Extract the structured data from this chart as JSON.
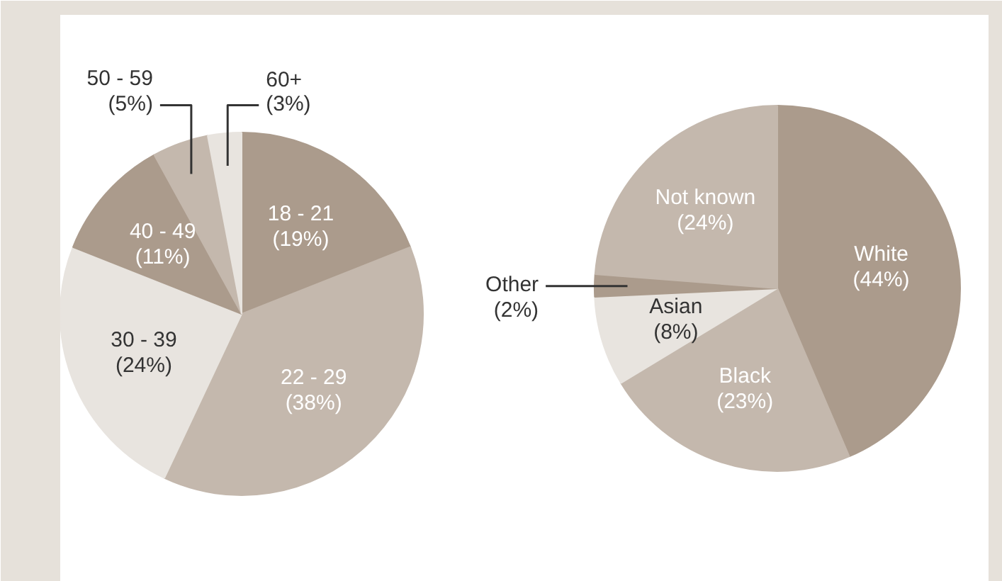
{
  "chart_data": [
    {
      "type": "pie",
      "categories": [
        "18 - 21",
        "22 - 29",
        "30 - 39",
        "40 - 49",
        "50 - 59",
        "60+"
      ],
      "values": [
        19,
        38,
        24,
        11,
        5,
        3
      ],
      "colors": [
        "#ab9b8c",
        "#c4b8ad",
        "#e8e4df",
        "#ab9b8c",
        "#c4b8ad",
        "#e8e4df"
      ],
      "value_labels": [
        "(19%)",
        "(38%)",
        "(24%)",
        "(11%)",
        "(5%)",
        "(3%)"
      ]
    },
    {
      "type": "pie",
      "categories": [
        "White",
        "Black",
        "Asian",
        "Other",
        "Not known"
      ],
      "values": [
        44,
        23,
        8,
        2,
        24
      ],
      "colors": [
        "#ab9b8c",
        "#c4b8ad",
        "#e8e4df",
        "#ab9b8c",
        "#c4b8ad"
      ],
      "value_labels": [
        "(44%)",
        "(23%)",
        "(8%)",
        "(2%)",
        "(24%)"
      ]
    }
  ]
}
